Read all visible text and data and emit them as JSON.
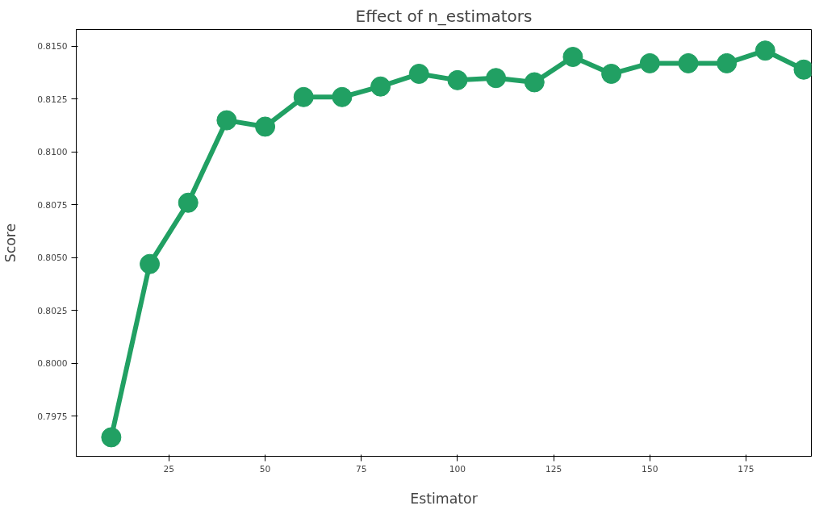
{
  "chart_data": {
    "type": "line",
    "title": "Effect of n_estimators",
    "xlabel": "Estimator",
    "ylabel": "Score",
    "x": [
      10,
      20,
      30,
      40,
      50,
      60,
      70,
      80,
      90,
      100,
      110,
      120,
      130,
      140,
      150,
      160,
      170,
      180,
      190
    ],
    "series": [
      {
        "color": "#21a063",
        "values": [
          0.7965,
          0.8047,
          0.8076,
          0.8115,
          0.8112,
          0.8126,
          0.8126,
          0.8131,
          0.8137,
          0.8134,
          0.8135,
          0.8133,
          0.8145,
          0.8137,
          0.8142,
          0.8142,
          0.8142,
          0.8148,
          0.8139
        ]
      }
    ],
    "xlim": [
      0.9,
      192
    ],
    "ylim": [
      0.7956,
      0.8158
    ],
    "xticks": [
      25,
      50,
      75,
      100,
      125,
      150,
      175
    ],
    "yticks": [
      {
        "value": 0.7975,
        "label": "0.7975"
      },
      {
        "value": 0.8,
        "label": "0.8000"
      },
      {
        "value": 0.8025,
        "label": "0.8025"
      },
      {
        "value": 0.805,
        "label": "0.8050"
      },
      {
        "value": 0.8075,
        "label": "0.8075"
      },
      {
        "value": 0.81,
        "label": "0.8100"
      },
      {
        "value": 0.8125,
        "label": "0.8125"
      },
      {
        "value": 0.815,
        "label": "0.8150"
      }
    ],
    "marker": "circle",
    "line_style": "solid",
    "grid": false
  }
}
